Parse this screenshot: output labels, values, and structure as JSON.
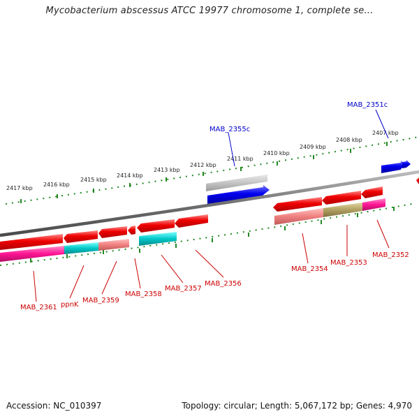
{
  "title": "Mycobacterium abscessus ATCC 19977 chromosome 1, complete se...",
  "footer": {
    "accession": "Accession: NC_010397",
    "info": "Topology: circular; Length: 5,067,172 bp; Genes: 4,970"
  },
  "kbp_ticks": [
    "2417 kbp",
    "2416 kbp",
    "2415 kbp",
    "2414 kbp",
    "2413 kbp",
    "2412 kbp",
    "2411 kbp",
    "2410 kbp",
    "2409 kbp",
    "2408 kbp",
    "2407 kbp"
  ],
  "top_labels": [
    {
      "name": "MAB_2355c",
      "color": "#0000cc"
    },
    {
      "name": "MAB_2351c",
      "color": "#0000cc"
    }
  ],
  "bottom_labels": [
    {
      "name": "MAB_2361",
      "color": "#cc0000"
    },
    {
      "name": "ppnK",
      "color": "#cc0000"
    },
    {
      "name": "MAB_2359",
      "color": "#cc0000"
    },
    {
      "name": "MAB_2358",
      "color": "#cc0000"
    },
    {
      "name": "MAB_2357",
      "color": "#cc0000"
    },
    {
      "name": "MAB_2356",
      "color": "#cc0000"
    },
    {
      "name": "MAB_2354",
      "color": "#cc0000"
    },
    {
      "name": "MAB_2353",
      "color": "#cc0000"
    },
    {
      "name": "MAB_2352",
      "color": "#cc0000"
    }
  ],
  "colors": {
    "backbone": "#7a7a7a",
    "forward_gene": "#0000ee",
    "reverse_gene": "#ee0000",
    "cog_pink": "#ff1493",
    "cog_cyan": "#00c8c8",
    "cog_salmon": "#f08080",
    "cog_olive": "#b0a060",
    "cog_gray": "#b8b8b8",
    "tick_dots": "#228822"
  }
}
